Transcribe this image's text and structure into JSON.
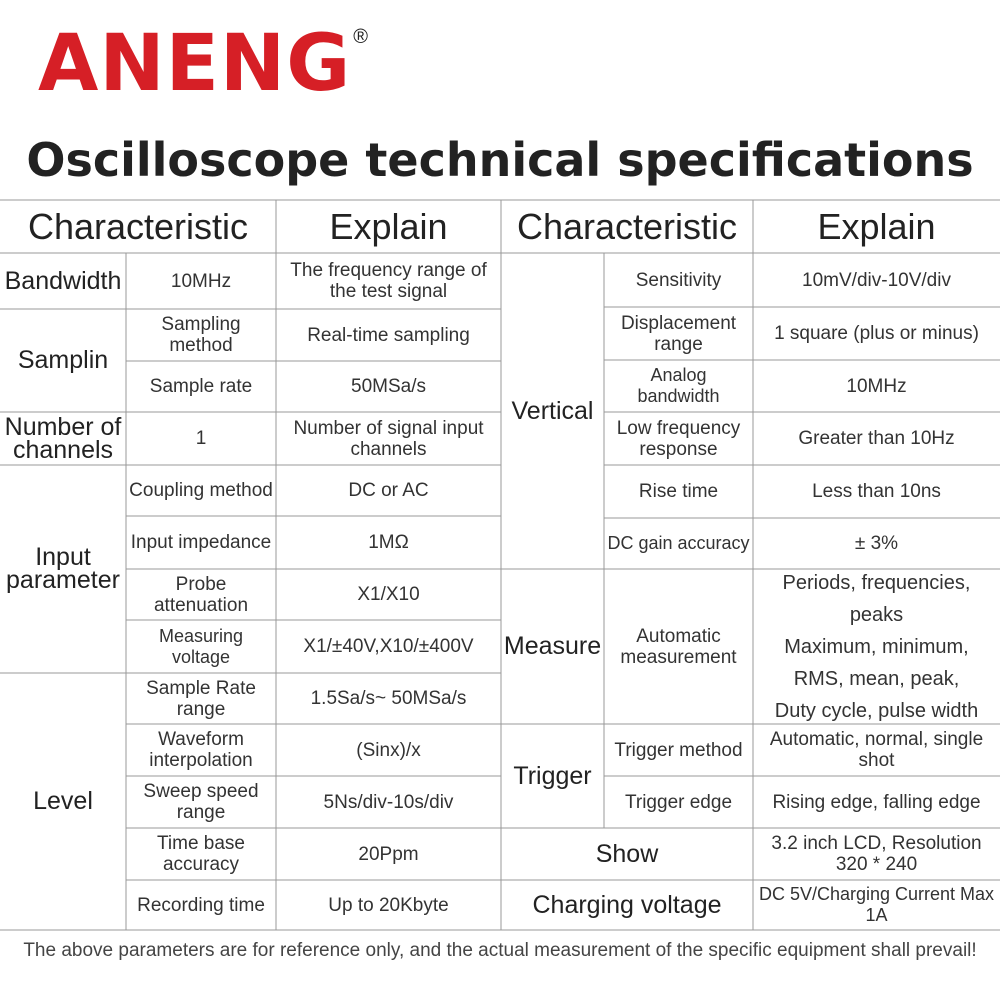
{
  "brand": {
    "name": "ANENG",
    "registered_mark": "®",
    "color": "#d61f26"
  },
  "title": "Oscilloscope technical specifications",
  "headers": {
    "left_characteristic": "Characteristic",
    "left_explain": "Explain",
    "right_characteristic": "Characteristic",
    "right_explain": "Explain"
  },
  "left": {
    "bandwidth": {
      "category": "Bandwidth",
      "value": "10MHz",
      "explain": "The frequency range of the test signal"
    },
    "sampling": {
      "category": "Samplin",
      "rows": [
        {
          "name": "Sampling method",
          "explain": "Real-time sampling"
        },
        {
          "name": "Sample rate",
          "explain": "50MSa/s"
        }
      ]
    },
    "channels": {
      "category": "Number of channels",
      "value": "1",
      "explain": "Number of signal input channels"
    },
    "input": {
      "category": "Input parameter",
      "rows": [
        {
          "name": "Coupling method",
          "explain": "DC or AC"
        },
        {
          "name": "Input impedance",
          "explain": "1MΩ"
        },
        {
          "name": "Probe attenuation",
          "explain": "X1/X10"
        },
        {
          "name": "Measuring voltage",
          "explain": "X1/±40V,X10/±400V"
        }
      ]
    },
    "level": {
      "category": "Level",
      "rows": [
        {
          "name": "Sample Rate range",
          "explain": "1.5Sa/s~ 50MSa/s"
        },
        {
          "name": "Waveform interpolation",
          "explain": "(Sinx)/x"
        },
        {
          "name": "Sweep speed range",
          "explain": "5Ns/div-10s/div"
        },
        {
          "name": "Time base accuracy",
          "explain": "20Ppm"
        },
        {
          "name": "Recording time",
          "explain": "Up to 20Kbyte"
        }
      ]
    }
  },
  "right": {
    "vertical": {
      "category": "Vertical",
      "rows": [
        {
          "name": "Sensitivity",
          "explain": "10mV/div-10V/div"
        },
        {
          "name": "Displacement range",
          "explain": "1 square (plus or minus)"
        },
        {
          "name": "Analog bandwidth",
          "explain": "10MHz"
        },
        {
          "name": "Low frequency response",
          "explain": "Greater than 10Hz"
        },
        {
          "name": "Rise time",
          "explain": "Less than 10ns"
        },
        {
          "name": "DC gain accuracy",
          "explain": "± 3%"
        }
      ]
    },
    "measure": {
      "category": "Measure",
      "name": "Automatic measurement",
      "explain_lines": [
        "Periods, frequencies, peaks",
        "Maximum, minimum,",
        "RMS, mean, peak,",
        "Duty cycle, pulse width"
      ]
    },
    "trigger": {
      "category": "Trigger",
      "rows": [
        {
          "name": "Trigger method",
          "explain": "Automatic, normal, single shot"
        },
        {
          "name": "Trigger edge",
          "explain": "Rising edge, falling edge"
        }
      ]
    },
    "show": {
      "category": "Show",
      "explain": "3.2 inch LCD, Resolution 320 * 240"
    },
    "charging": {
      "category": "Charging voltage",
      "explain": "DC 5V/Charging Current Max 1A"
    }
  },
  "footnote": "The above parameters are for reference only, and the actual measurement of the specific equipment shall prevail!"
}
